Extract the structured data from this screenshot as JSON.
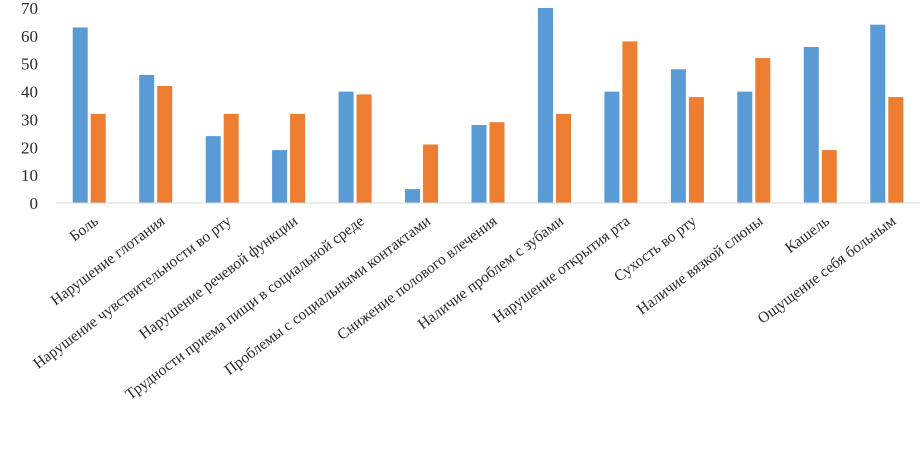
{
  "chart_data": {
    "type": "bar",
    "title": "",
    "xlabel": "",
    "ylabel": "",
    "ylim": [
      0,
      70
    ],
    "yticks": [
      0,
      10,
      20,
      30,
      40,
      50,
      60,
      70
    ],
    "grid": false,
    "categories": [
      "Боль",
      "Нарушение глотания",
      "Нарушение чувствительности во рту",
      "Нарушение речевой функции",
      "Трудности приема пищи в социальной среде",
      "Проблемы с социальными контактами",
      "Снижение полового влечения",
      "Наличие проблем с зубами",
      "Нарушение открытия рта",
      "Сухость во рту",
      "Наличие вязкой слюны",
      "Кашель",
      "Ощущение себя больным"
    ],
    "series": [
      {
        "color": "#5b9bd5",
        "values": [
          63,
          46,
          24,
          19,
          40,
          5,
          28,
          70,
          40,
          48,
          40,
          56,
          64
        ]
      },
      {
        "color": "#ed7d31",
        "values": [
          32,
          42,
          32,
          32,
          39,
          21,
          29,
          32,
          58,
          38,
          52,
          19,
          38
        ]
      }
    ]
  }
}
